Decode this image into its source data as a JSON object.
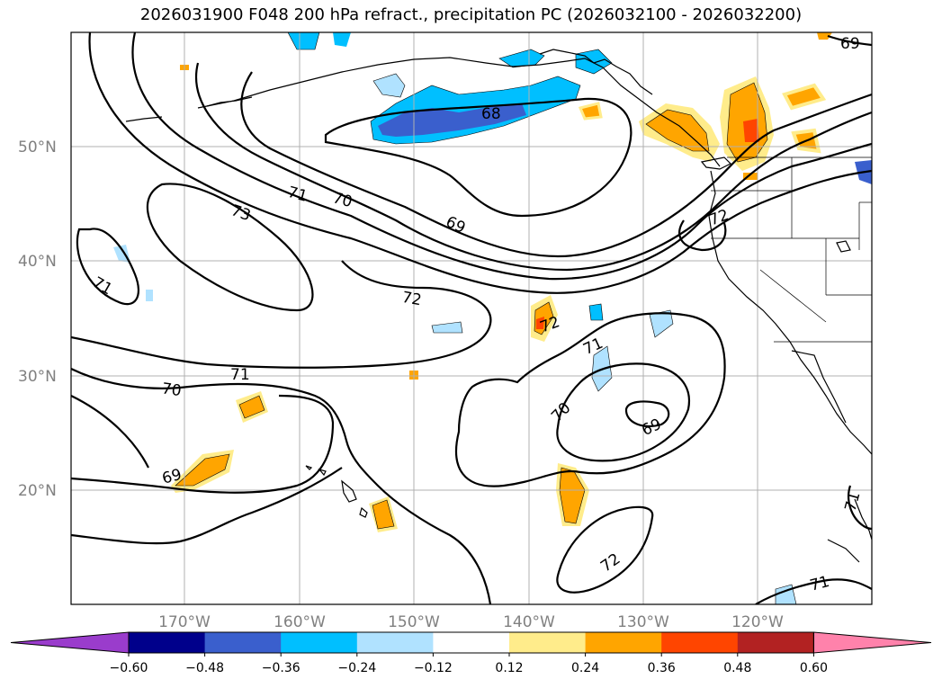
{
  "title": "2026031900 F048 200 hPa refract., precipitation PC (2026032100 - 2026032200)",
  "map": {
    "lat_labels": [
      "50°N",
      "40°N",
      "30°N",
      "20°N"
    ],
    "lon_labels": [
      "170°W",
      "160°W",
      "150°W",
      "140°W",
      "130°W",
      "120°W"
    ],
    "contour_labels": [
      "68",
      "69",
      "70",
      "71",
      "72",
      "73",
      "69",
      "71",
      "72",
      "71",
      "70",
      "69",
      "71",
      "72",
      "70",
      "69",
      "72",
      "72",
      "71",
      "71",
      "69"
    ]
  },
  "colorbar": {
    "colors": [
      "#9a3ccc",
      "#00008b",
      "#3a5fcd",
      "#00bfff",
      "#b0e2ff",
      "#ffffff",
      "#ffec8b",
      "#ffa500",
      "#ff4500",
      "#b22222",
      "#ff82ab"
    ],
    "ticks": [
      "−0.60",
      "−0.48",
      "−0.36",
      "−0.24",
      "−0.12",
      "0.12",
      "0.24",
      "0.36",
      "0.48",
      "0.60"
    ]
  }
}
